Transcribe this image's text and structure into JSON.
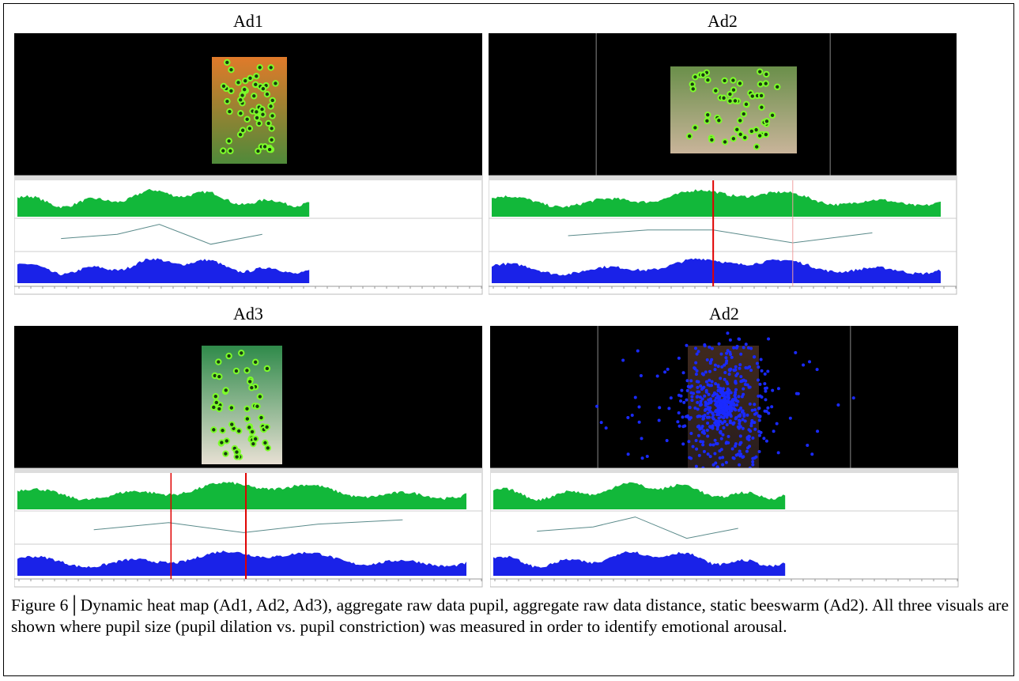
{
  "panels": [
    {
      "title": "Ad1"
    },
    {
      "title": "Ad2"
    },
    {
      "title": "Ad3"
    },
    {
      "title": "Ad2"
    }
  ],
  "caption": {
    "label": "Figure 6│",
    "text": "Dynamic heat map (Ad1, Ad2, Ad3), aggregate raw data pupil, aggregate raw data distance, static beeswarm (Ad2). All three visuals are shown where pupil size (pupil dilation vs. pupil constriction) was measured in order to identify emotional arousal."
  }
}
